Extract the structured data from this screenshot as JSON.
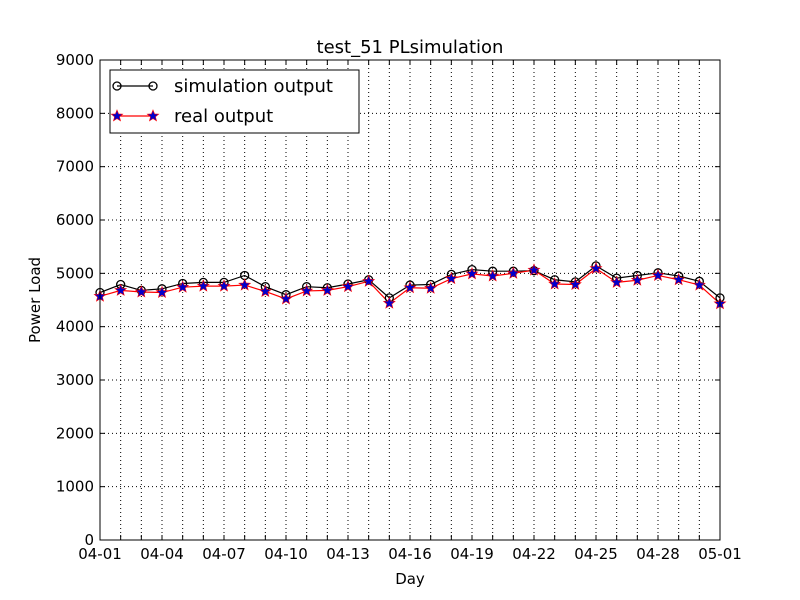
{
  "chart_data": {
    "type": "line",
    "title": "test_51 PLsimulation",
    "xlabel": "Day",
    "ylabel": "Power Load",
    "ylim": [
      0,
      9000
    ],
    "yticks": [
      0,
      1000,
      2000,
      3000,
      4000,
      5000,
      6000,
      7000,
      8000,
      9000
    ],
    "xticks": [
      "04-01",
      "04-04",
      "04-07",
      "04-10",
      "04-13",
      "04-16",
      "04-19",
      "04-22",
      "04-25",
      "04-28",
      "05-01"
    ],
    "x": [
      "04-01",
      "04-02",
      "04-03",
      "04-04",
      "04-05",
      "04-06",
      "04-07",
      "04-08",
      "04-09",
      "04-10",
      "04-11",
      "04-12",
      "04-13",
      "04-14",
      "04-15",
      "04-16",
      "04-17",
      "04-18",
      "04-19",
      "04-20",
      "04-21",
      "04-22",
      "04-23",
      "04-24",
      "04-25",
      "04-26",
      "04-27",
      "04-28",
      "04-29",
      "04-30",
      "05-01"
    ],
    "grid": true,
    "legend_position": "top-left",
    "series": [
      {
        "name": "simulation output",
        "color": "#000000",
        "marker": "circle",
        "values": [
          4640,
          4790,
          4680,
          4710,
          4810,
          4830,
          4830,
          4960,
          4750,
          4600,
          4750,
          4730,
          4800,
          4880,
          4540,
          4780,
          4790,
          4980,
          5070,
          5040,
          5040,
          5050,
          4880,
          4840,
          5140,
          4910,
          4960,
          5010,
          4950,
          4850,
          4540
        ]
      },
      {
        "name": "real output",
        "color": "#ff0000",
        "marker": "star",
        "marker_color": "#0000cc",
        "values": [
          4570,
          4680,
          4650,
          4640,
          4740,
          4760,
          4760,
          4780,
          4660,
          4520,
          4670,
          4680,
          4750,
          4850,
          4440,
          4730,
          4720,
          4900,
          4990,
          4950,
          5000,
          5060,
          4800,
          4790,
          5090,
          4830,
          4870,
          4960,
          4880,
          4780,
          4430
        ]
      }
    ]
  }
}
